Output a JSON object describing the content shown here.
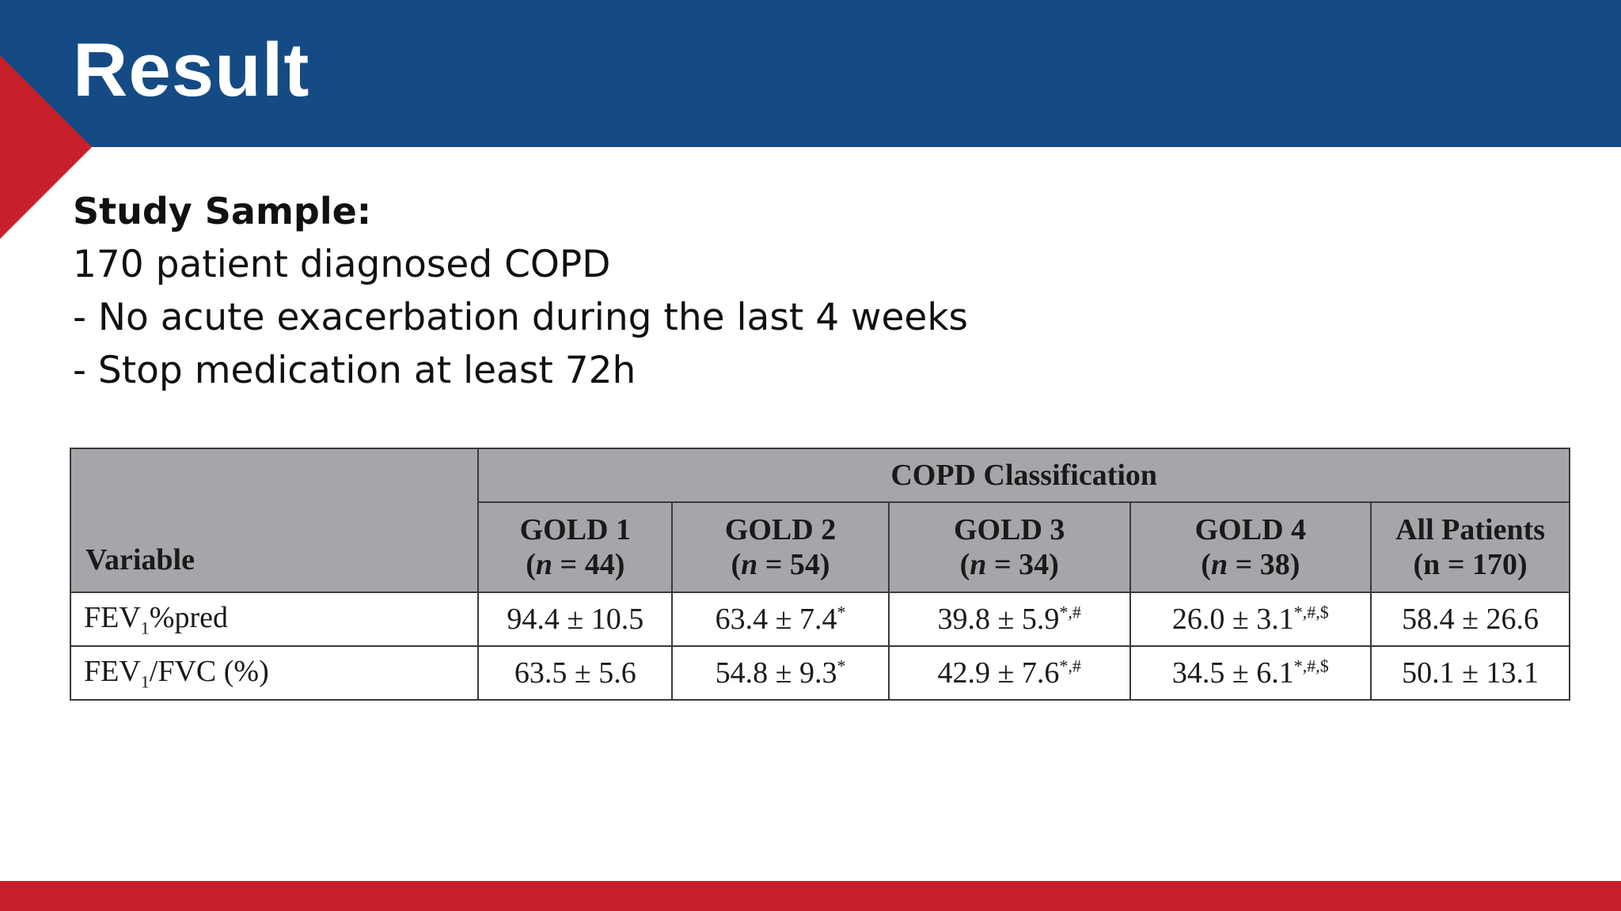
{
  "slide": {
    "title": "Result",
    "colors": {
      "header": "#154b84",
      "accent": "#c8202b",
      "table_header": "#a4a6a9"
    }
  },
  "content": {
    "subhead": "Study Sample:",
    "lines": [
      "170 patient diagnosed COPD",
      "- No acute exacerbation during the last 4 weeks",
      "- Stop medication at least 72h"
    ]
  },
  "table": {
    "group_header": "COPD Classification",
    "variable_header": "Variable",
    "columns": [
      {
        "label": "GOLD 1",
        "n_label": "n",
        "n_value": "44"
      },
      {
        "label": "GOLD 2",
        "n_label": "n",
        "n_value": "54"
      },
      {
        "label": "GOLD 3",
        "n_label": "n",
        "n_value": "34"
      },
      {
        "label": "GOLD 4",
        "n_label": "n",
        "n_value": "38"
      },
      {
        "label": "All Patients",
        "n_label": "n",
        "n_value": "170"
      }
    ],
    "rows": [
      {
        "var_prefix": "FEV",
        "var_sub": "1",
        "var_suffix": "%pred",
        "cells": [
          {
            "value": "94.4 ± 10.5",
            "sup": ""
          },
          {
            "value": "63.4 ± 7.4",
            "sup": "*"
          },
          {
            "value": "39.8 ± 5.9",
            "sup": "*,#"
          },
          {
            "value": "26.0 ± 3.1",
            "sup": "*,#,$"
          },
          {
            "value": "58.4 ± 26.6",
            "sup": ""
          }
        ]
      },
      {
        "var_prefix": "FEV",
        "var_sub": "1",
        "var_suffix": "/FVC (%)",
        "cells": [
          {
            "value": "63.5 ± 5.6",
            "sup": ""
          },
          {
            "value": "54.8 ± 9.3",
            "sup": "*"
          },
          {
            "value": "42.9 ± 7.6",
            "sup": "*,#"
          },
          {
            "value": "34.5 ± 6.1",
            "sup": "*,#,$"
          },
          {
            "value": "50.1 ± 13.1",
            "sup": ""
          }
        ]
      }
    ]
  }
}
